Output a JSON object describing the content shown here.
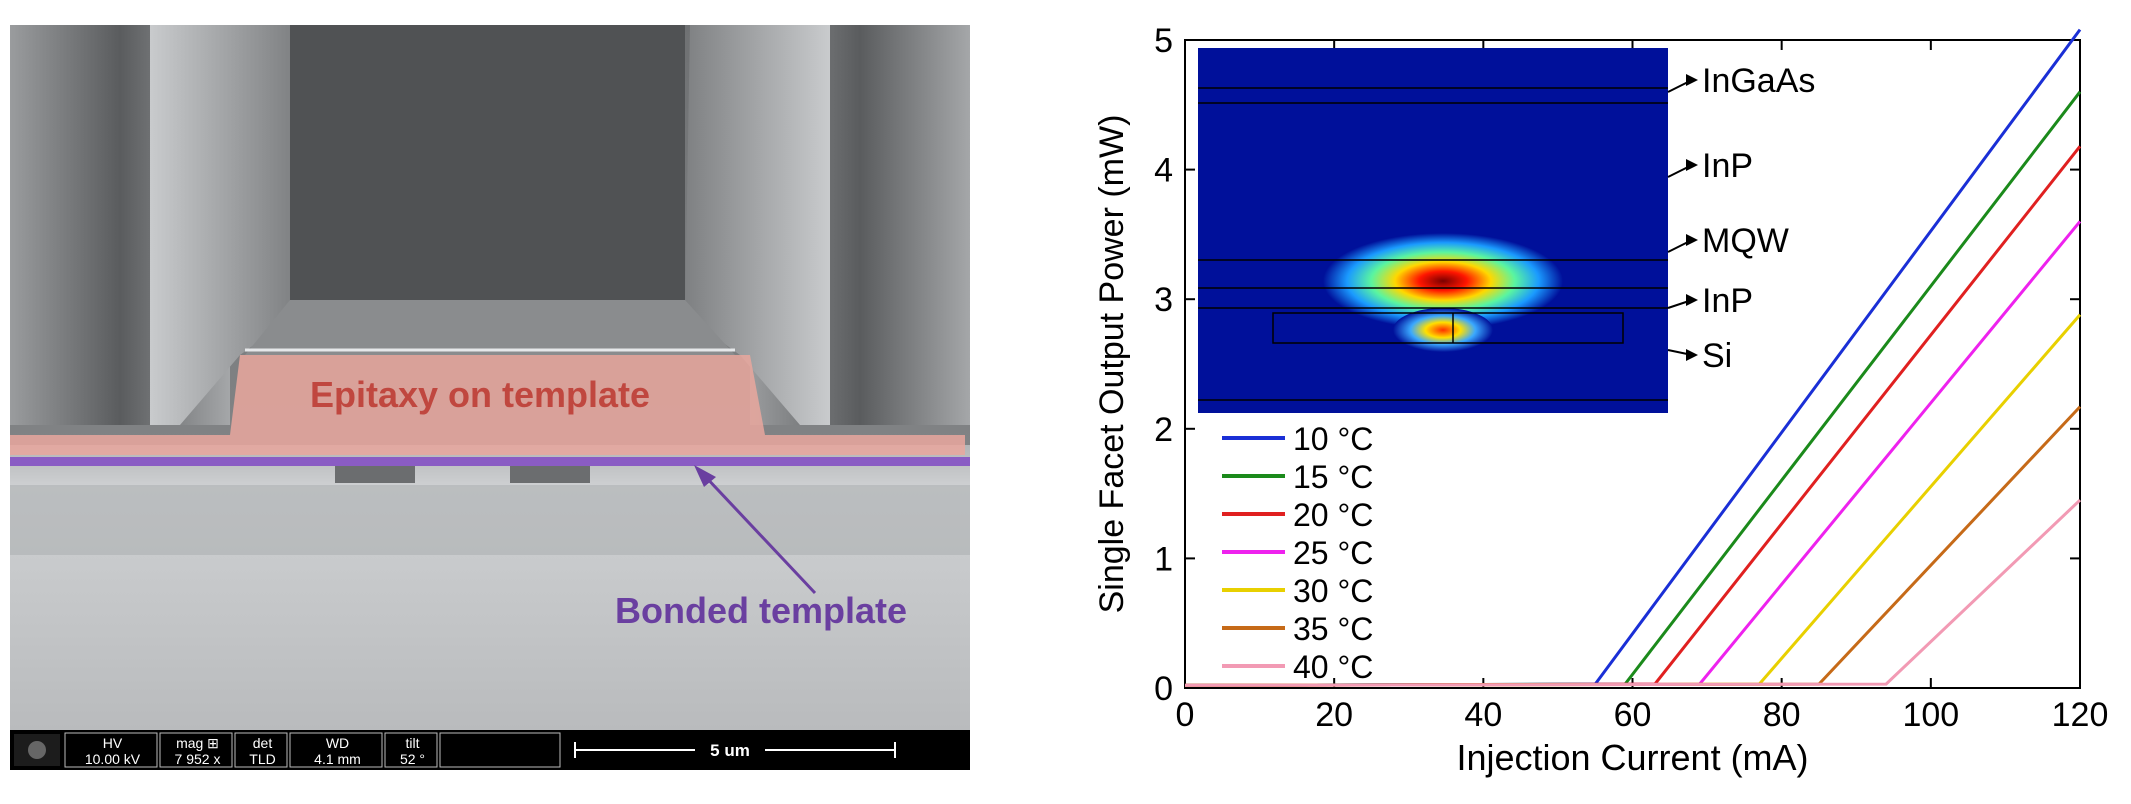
{
  "sem": {
    "epitaxy_label": "Epitaxy on template",
    "bonded_label": "Bonded template",
    "colors": {
      "epitaxy": "#c85a4e",
      "bonded": "#7a4aa8"
    },
    "info_bar": {
      "fields": [
        {
          "header": "HV",
          "value": "10.00 kV"
        },
        {
          "header": "mag ⊞",
          "value": "7 952 x"
        },
        {
          "header": "det",
          "value": "TLD"
        },
        {
          "header": "WD",
          "value": "4.1 mm"
        },
        {
          "header": "tilt",
          "value": "52 °"
        }
      ],
      "scale_label": "5 um"
    }
  },
  "chart_data": {
    "type": "line",
    "title": "",
    "xlabel": "Injection Current (mA)",
    "ylabel": "Single Facet Output Power (mW)",
    "xlim": [
      0,
      120
    ],
    "ylim": [
      0,
      5
    ],
    "xticks": [
      0,
      20,
      40,
      60,
      80,
      100,
      120
    ],
    "yticks": [
      0,
      1,
      2,
      3,
      4,
      5
    ],
    "grid": false,
    "legend_position": "left-middle",
    "series": [
      {
        "name": "10 °C",
        "color": "#1a2fd6",
        "x": [
          0,
          55,
          120
        ],
        "y": [
          0.02,
          0.03,
          5.08
        ]
      },
      {
        "name": "15 °C",
        "color": "#1b8a1b",
        "x": [
          0,
          59,
          120
        ],
        "y": [
          0.02,
          0.03,
          4.6
        ]
      },
      {
        "name": "20 °C",
        "color": "#e02020",
        "x": [
          0,
          63,
          120
        ],
        "y": [
          0.02,
          0.03,
          4.18
        ]
      },
      {
        "name": "25 °C",
        "color": "#ee22ee",
        "x": [
          0,
          69,
          120
        ],
        "y": [
          0.02,
          0.03,
          3.6
        ]
      },
      {
        "name": "30 °C",
        "color": "#e8d000",
        "x": [
          0,
          77,
          120
        ],
        "y": [
          0.02,
          0.03,
          2.88
        ]
      },
      {
        "name": "35 °C",
        "color": "#c66a18",
        "x": [
          0,
          85,
          120
        ],
        "y": [
          0.02,
          0.03,
          2.17
        ]
      },
      {
        "name": "40 °C",
        "color": "#f29ab4",
        "x": [
          0,
          94,
          120
        ],
        "y": [
          0.02,
          0.03,
          1.45
        ]
      }
    ],
    "inset": {
      "type": "heatmap",
      "layers": [
        "InGaAs",
        "InP",
        "MQW",
        "InP",
        "Si"
      ]
    }
  }
}
